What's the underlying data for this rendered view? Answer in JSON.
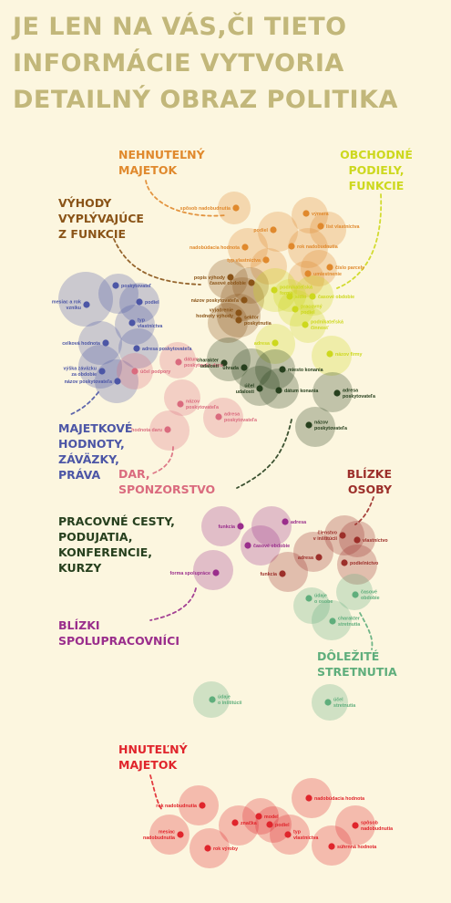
{
  "title": {
    "line1": "JE LEN NA VÁS,ČI TIETO",
    "line2": "INFORMÁCIE VYTVORIA",
    "line3": "DETAILNÝ OBRAZ POLITIKA"
  },
  "groups": [
    {
      "key": "nehnutelny",
      "lines": [
        "NEHNUTEĽNÝ",
        "MAJETOK"
      ],
      "color": "#e0892d"
    },
    {
      "key": "obchodne",
      "lines": [
        "OBCHODNÉ",
        "PODIELY,",
        "FUNKCIE"
      ],
      "color": "#cdd81e"
    },
    {
      "key": "vyhody",
      "lines": [
        "VÝHODY",
        "VYPLÝVAJÚCE",
        "Z FUNKCIE"
      ],
      "color": "#8a5418"
    },
    {
      "key": "majetkove",
      "lines": [
        "MAJETKOVÉ",
        "HODNOTY,",
        "ZÁVÄZKY,",
        "PRÁVA"
      ],
      "color": "#4c56a6"
    },
    {
      "key": "dar",
      "lines": [
        "DAR,",
        "SPONZORSTVO"
      ],
      "color": "#da6b7e"
    },
    {
      "key": "blizke",
      "lines": [
        "BLÍZKE",
        "OSOBY"
      ],
      "color": "#9c2f2a"
    },
    {
      "key": "pracovne",
      "lines": [
        "PRACOVNÉ CESTY,",
        "PODUJATIA,",
        "KONFERENCIE,",
        "KURZY"
      ],
      "color": "#27401e"
    },
    {
      "key": "spolupracovnici",
      "lines": [
        "BLÍZKI",
        "SPOLUPRACOVNÍCI"
      ],
      "color": "#9a2e8c"
    },
    {
      "key": "dolezite",
      "lines": [
        "DÔLEŽITÉ",
        "STRETNUTIA"
      ],
      "color": "#5fae7c"
    },
    {
      "key": "hnutelny",
      "lines": [
        "HNUTEĽNÝ",
        "MAJETOK"
      ],
      "color": "#e0252c"
    }
  ],
  "items": [
    {
      "group": "nehnutelny",
      "lines": [
        "spôsob nadobudnutia"
      ]
    },
    {
      "group": "nehnutelny",
      "lines": [
        "výmera"
      ]
    },
    {
      "group": "nehnutelny",
      "lines": [
        "list vlastníctva"
      ]
    },
    {
      "group": "nehnutelny",
      "lines": [
        "podiel"
      ]
    },
    {
      "group": "nehnutelny",
      "lines": [
        "nadobúdacia hodnota"
      ]
    },
    {
      "group": "nehnutelny",
      "lines": [
        "rok nadobudnutia"
      ]
    },
    {
      "group": "nehnutelny",
      "lines": [
        "typ vlastníctva"
      ]
    },
    {
      "group": "nehnutelny",
      "lines": [
        "číslo parcely"
      ]
    },
    {
      "group": "nehnutelny",
      "lines": [
        "umiestnenie"
      ]
    },
    {
      "group": "vyhody",
      "lines": [
        "popis výhody"
      ]
    },
    {
      "group": "vyhody",
      "lines": [
        "časové obdobie"
      ]
    },
    {
      "group": "vyhody",
      "lines": [
        "názov poskytovateľa"
      ]
    },
    {
      "group": "vyhody",
      "lines": [
        "vyjadrenie",
        "hodnoty výhody"
      ]
    },
    {
      "group": "vyhody",
      "lines": [
        "sektor",
        "poskytnutia"
      ]
    },
    {
      "group": "obchodne",
      "lines": [
        "podnikateľská",
        "forma"
      ]
    },
    {
      "group": "obchodne",
      "lines": [
        "sídlo"
      ]
    },
    {
      "group": "obchodne",
      "lines": [
        "časové obdobie"
      ]
    },
    {
      "group": "obchodne",
      "lines": [
        "pracovný",
        "podiel"
      ]
    },
    {
      "group": "obchodne",
      "lines": [
        "podnikateľská",
        "činnosť"
      ]
    },
    {
      "group": "obchodne",
      "lines": [
        "adresa"
      ]
    },
    {
      "group": "obchodne",
      "lines": [
        "názov firmy"
      ]
    },
    {
      "group": "majetkove",
      "lines": [
        "mesiac a rok",
        "vzniku"
      ]
    },
    {
      "group": "majetkove",
      "lines": [
        "poskytovateľ"
      ]
    },
    {
      "group": "majetkove",
      "lines": [
        "podiel"
      ]
    },
    {
      "group": "majetkove",
      "lines": [
        "typ",
        "vlastníctva"
      ]
    },
    {
      "group": "majetkove",
      "lines": [
        "celková hodnota"
      ]
    },
    {
      "group": "majetkove",
      "lines": [
        "adresa poskytovateľa"
      ]
    },
    {
      "group": "majetkove",
      "lines": [
        "výška záväzku",
        "za obdobie"
      ]
    },
    {
      "group": "majetkove",
      "lines": [
        "názov poskytovateľa"
      ]
    },
    {
      "group": "dar",
      "lines": [
        "účel podpory"
      ]
    },
    {
      "group": "dar",
      "lines": [
        "dátum",
        "poskytnutia daru"
      ]
    },
    {
      "group": "dar",
      "lines": [
        "názov",
        "poskytovateľa"
      ]
    },
    {
      "group": "dar",
      "lines": [
        "adresa",
        "poskytovateľa"
      ]
    },
    {
      "group": "dar",
      "lines": [
        "hodnota daru"
      ]
    },
    {
      "group": "pracovne",
      "lines": [
        "charakter",
        "udalosti"
      ]
    },
    {
      "group": "pracovne",
      "lines": [
        "úhrada"
      ]
    },
    {
      "group": "pracovne",
      "lines": [
        "miesto konania"
      ]
    },
    {
      "group": "pracovne",
      "lines": [
        "účel",
        "udalosti"
      ]
    },
    {
      "group": "pracovne",
      "lines": [
        "dátum konania"
      ]
    },
    {
      "group": "pracovne",
      "lines": [
        "adresa",
        "poskytovateľa"
      ]
    },
    {
      "group": "pracovne",
      "lines": [
        "názov",
        "poskytovateľa"
      ]
    },
    {
      "group": "spolupracovnici",
      "lines": [
        "funkcia"
      ]
    },
    {
      "group": "spolupracovnici",
      "lines": [
        "adresa"
      ]
    },
    {
      "group": "spolupracovnici",
      "lines": [
        "časové obdobie"
      ]
    },
    {
      "group": "spolupracovnici",
      "lines": [
        "forma spolupráce"
      ]
    },
    {
      "group": "blizke",
      "lines": [
        "členstvo",
        "v inštitúcii"
      ]
    },
    {
      "group": "blizke",
      "lines": [
        "vlastníctvo"
      ]
    },
    {
      "group": "blizke",
      "lines": [
        "adresa"
      ]
    },
    {
      "group": "blizke",
      "lines": [
        "podielnictvo"
      ]
    },
    {
      "group": "blizke",
      "lines": [
        "funkcia"
      ]
    },
    {
      "group": "dolezite",
      "lines": [
        "časové",
        "obdobie"
      ]
    },
    {
      "group": "dolezite",
      "lines": [
        "údaje",
        "o osobe"
      ]
    },
    {
      "group": "dolezite",
      "lines": [
        "charakter",
        "stretnutia"
      ]
    },
    {
      "group": "dolezite",
      "lines": [
        "údaje",
        "o inštitúcii"
      ]
    },
    {
      "group": "dolezite",
      "lines": [
        "účel",
        "stretnutia"
      ]
    },
    {
      "group": "hnutelny",
      "lines": [
        "nadobúdacia hodnota"
      ]
    },
    {
      "group": "hnutelny",
      "lines": [
        "rok nadobudnutia"
      ]
    },
    {
      "group": "hnutelny",
      "lines": [
        "model"
      ]
    },
    {
      "group": "hnutelny",
      "lines": [
        "podiel"
      ]
    },
    {
      "group": "hnutelny",
      "lines": [
        "značka"
      ]
    },
    {
      "group": "hnutelny",
      "lines": [
        "typ",
        "vlastníctva"
      ]
    },
    {
      "group": "hnutelny",
      "lines": [
        "spôsob",
        "nadobudnutia"
      ]
    },
    {
      "group": "hnutelny",
      "lines": [
        "mesiac",
        "nadobudnutia"
      ]
    },
    {
      "group": "hnutelny",
      "lines": [
        "rok výroby"
      ]
    },
    {
      "group": "hnutelny",
      "lines": [
        "súhrnná hodnota"
      ]
    }
  ]
}
